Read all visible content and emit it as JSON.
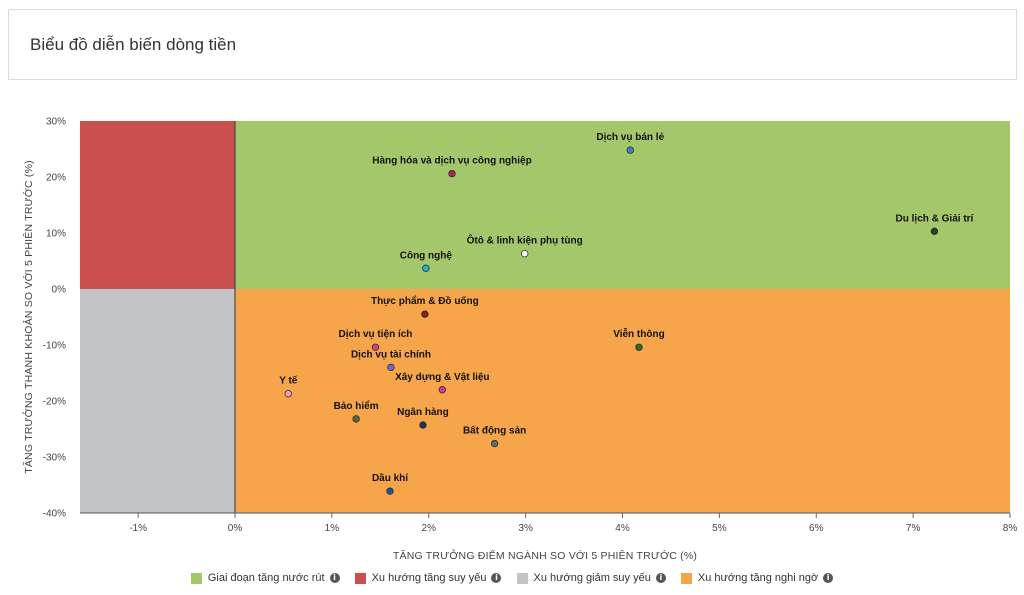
{
  "header": {
    "title": "Biểu đồ diễn biến dòng tiền"
  },
  "colors": {
    "green": "#a5c76b",
    "red": "#c9504f",
    "gray": "#c2c3c6",
    "orange": "#f7a54b"
  },
  "chart_data": {
    "type": "scatter",
    "xlabel": "TĂNG TRƯỞNG ĐIỂM NGÀNH SO VỚI 5 PHIÊN TRƯỚC (%)",
    "ylabel": "TĂNG TRƯỞNG THANH KHOẢN SO VỚI 5 PHIÊN TRƯỚC (%)",
    "xlim": [
      -1.6,
      8
    ],
    "ylim": [
      -40,
      30
    ],
    "xticks": [
      -1,
      0,
      1,
      2,
      3,
      4,
      5,
      6,
      7,
      8
    ],
    "xtick_labels": [
      "-1%",
      "0%",
      "1%",
      "2%",
      "3%",
      "4%",
      "5%",
      "6%",
      "7%",
      "8%"
    ],
    "yticks": [
      30,
      20,
      10,
      0,
      -10,
      -20,
      -30,
      -40
    ],
    "ytick_labels": [
      "30%",
      "20%",
      "10%",
      "0%",
      "-10%",
      "-20%",
      "-30%",
      "-40%"
    ],
    "quadrants": [
      {
        "name": "Giai đoạn tăng nước rút",
        "color": "#a5c76b",
        "region": "top-right"
      },
      {
        "name": "Xu hướng tăng suy yếu",
        "color": "#c9504f",
        "region": "top-left"
      },
      {
        "name": "Xu hướng giảm suy yếu",
        "color": "#c2c3c6",
        "region": "bottom-left"
      },
      {
        "name": "Xu hướng tăng nghi ngờ",
        "color": "#f7a54b",
        "region": "bottom-right"
      }
    ],
    "points": [
      {
        "label": "Dịch vụ bán lẻ",
        "x": 4.08,
        "y": 24.8,
        "color": "#3d7fc4"
      },
      {
        "label": "Hàng hóa và dịch vụ công nghiệp",
        "x": 2.24,
        "y": 20.6,
        "color": "#b2205a"
      },
      {
        "label": "Du lịch & Giải trí",
        "x": 7.22,
        "y": 10.3,
        "color": "#1f4a22"
      },
      {
        "label": "Ôtô & linh kiện phụ tùng",
        "x": 2.99,
        "y": 6.3,
        "color": "#ffffff"
      },
      {
        "label": "Công nghệ",
        "x": 1.97,
        "y": 3.7,
        "color": "#2ab0d6"
      },
      {
        "label": "Thực phẩm & Đồ uống",
        "x": 1.96,
        "y": -4.5,
        "color": "#8b1e1e"
      },
      {
        "label": "Dịch vụ tiện ích",
        "x": 1.45,
        "y": -10.4,
        "color": "#c94a7a"
      },
      {
        "label": "Dịch vụ tài chính",
        "x": 1.61,
        "y": -14.0,
        "color": "#6b6bd6"
      },
      {
        "label": "Viễn thông",
        "x": 4.17,
        "y": -10.4,
        "color": "#2b6b2b"
      },
      {
        "label": "Xây dựng & Vật liệu",
        "x": 2.14,
        "y": -18.0,
        "color": "#e0338f"
      },
      {
        "label": "Y tế",
        "x": 0.55,
        "y": -18.7,
        "color": "#f4a0b0"
      },
      {
        "label": "Bảo hiểm",
        "x": 1.25,
        "y": -23.2,
        "color": "#566b3a"
      },
      {
        "label": "Ngân hàng",
        "x": 1.94,
        "y": -24.3,
        "color": "#1e2f60"
      },
      {
        "label": "Bất động sản",
        "x": 2.68,
        "y": -27.6,
        "color": "#5a6b7a"
      },
      {
        "label": "Dầu khí",
        "x": 1.6,
        "y": -36.1,
        "color": "#2a4fa0"
      }
    ]
  },
  "legend": {
    "items": [
      {
        "label": "Giai đoạn tăng nước rút",
        "color": "#a5c76b"
      },
      {
        "label": "Xu hướng tăng suy yếu",
        "color": "#c9504f"
      },
      {
        "label": "Xu hướng giảm suy yếu",
        "color": "#c2c3c6"
      },
      {
        "label": "Xu hướng tăng nghi ngờ",
        "color": "#f7a54b"
      }
    ],
    "info_glyph": "i"
  }
}
